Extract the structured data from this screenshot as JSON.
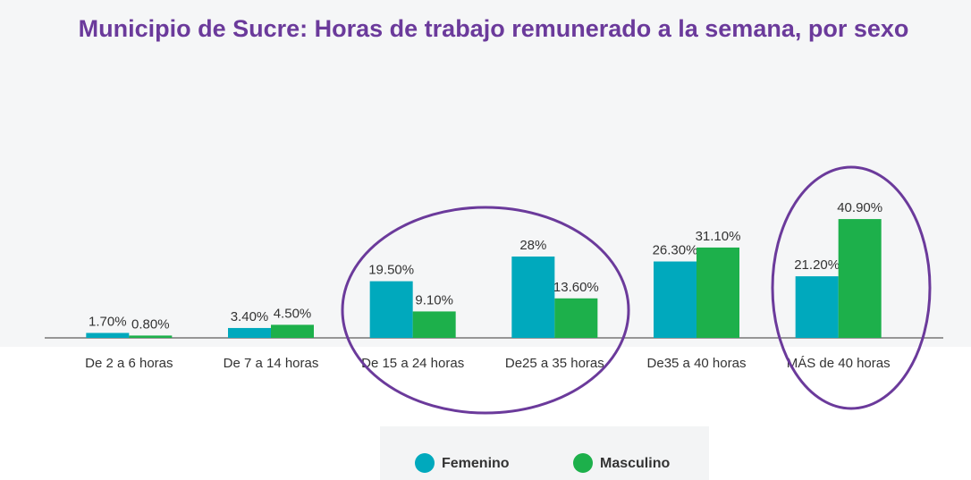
{
  "chart_data": {
    "type": "bar",
    "title": "Municipio de Sucre: Horas de trabajo remunerado a la semana, por sexo",
    "categories": [
      "De 2 a 6 horas",
      "De 7 a 14 horas",
      "De 15 a 24 horas",
      "De25 a 35 horas",
      "De35 a 40 horas",
      "MÁS de  40 horas"
    ],
    "series": [
      {
        "name": "Femenino",
        "color": "#00a9bd",
        "values": [
          1.7,
          3.4,
          19.5,
          28,
          26.3,
          21.2
        ],
        "value_labels": [
          "1.70%",
          "3.40%",
          "19.50%",
          "28%",
          "26.30%",
          "21.20%"
        ]
      },
      {
        "name": "Masculino",
        "color": "#1db04b",
        "values": [
          0.8,
          4.5,
          9.1,
          13.6,
          31.1,
          40.9
        ],
        "value_labels": [
          "0.80%",
          "4.50%",
          "9.10%",
          "13.60%",
          "31.10%",
          "40.90%"
        ]
      }
    ],
    "ylim": [
      0,
      50
    ],
    "legend": "bottom"
  }
}
